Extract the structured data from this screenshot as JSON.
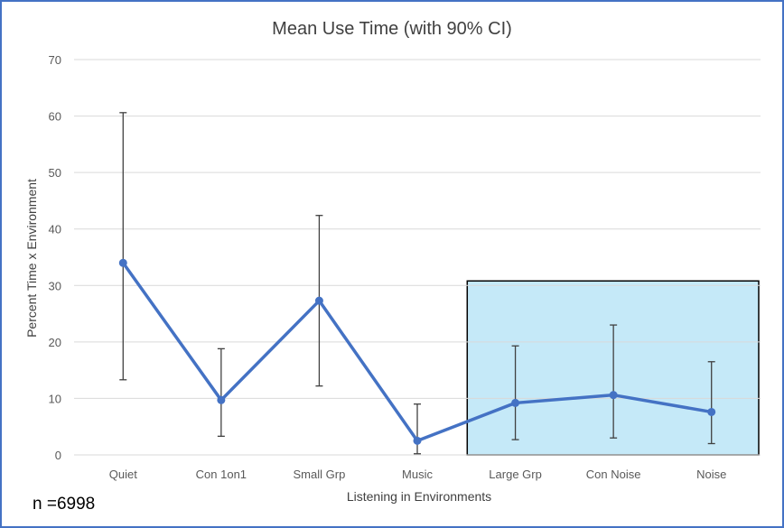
{
  "chart_data": {
    "type": "line",
    "title": "Mean Use Time (with 90% CI)",
    "xlabel": "Listening in Environments",
    "ylabel": "Percent Time x Environment",
    "categories": [
      "Quiet",
      "Con 1on1",
      "Small Grp",
      "Music",
      "Large Grp",
      "Con Noise",
      "Noise"
    ],
    "series": [
      {
        "values": [
          34.0,
          9.7,
          27.3,
          2.5,
          9.2,
          10.6,
          7.6
        ],
        "ci_upper": [
          60.6,
          18.8,
          42.4,
          9.0,
          19.3,
          23.0,
          16.5
        ],
        "ci_lower": [
          13.3,
          3.3,
          12.2,
          0.2,
          2.7,
          3.0,
          2.0
        ]
      }
    ],
    "ylim": [
      0,
      70
    ],
    "yticks": [
      0,
      10,
      20,
      30,
      40,
      50,
      60,
      70
    ],
    "grid": true,
    "legend": "none",
    "line_color": "#4472c4",
    "errorbar_color": "#404040",
    "highlight": {
      "from_category": "Large Grp",
      "to_category": "Noise",
      "y_top": 30.8,
      "fill": "#c5e9f8",
      "border": "#000000"
    }
  },
  "annotation": {
    "text": "n =6998"
  },
  "colors": {
    "frame": "#4472c4",
    "grid": "#d9d9d9"
  }
}
